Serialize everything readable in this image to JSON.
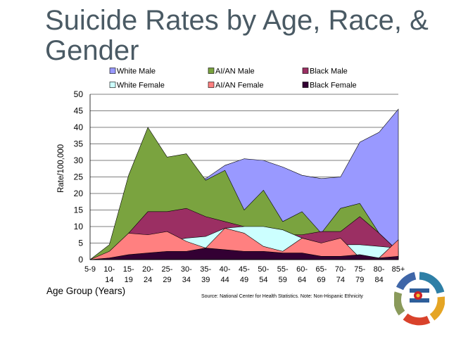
{
  "slide": {
    "title_line1": "Suicide Rates by Age, Race, &",
    "title_line2": "Gender",
    "source_note": "Source: National Center for Health Statistics. Note: Non-Hispanic Ethnicity"
  },
  "chart_data": {
    "type": "area",
    "title": "Suicide Rates by Age, Race, & Gender",
    "xlabel": "Age Group (Years)",
    "ylabel": "Rate/100,000",
    "ylim": [
      0,
      50
    ],
    "yticks": [
      0,
      5,
      10,
      15,
      20,
      25,
      30,
      35,
      40,
      45,
      50
    ],
    "gridlines": true,
    "legend_position": "top",
    "categories": [
      [
        "5-9"
      ],
      [
        "10-",
        "14"
      ],
      [
        "15-",
        "19"
      ],
      [
        "20-",
        "24"
      ],
      [
        "25-",
        "29"
      ],
      [
        "30-",
        "34"
      ],
      [
        "35-",
        "39"
      ],
      [
        "40-",
        "44"
      ],
      [
        "45-",
        "49"
      ],
      [
        "50-",
        "54"
      ],
      [
        "55-",
        "59"
      ],
      [
        "60-",
        "64"
      ],
      [
        "65-",
        "69"
      ],
      [
        "70-",
        "74"
      ],
      [
        "75-",
        "79"
      ],
      [
        "80-",
        "84"
      ],
      [
        "85+"
      ]
    ],
    "series": [
      {
        "name": "White Male",
        "color": "#9999ff",
        "values": [
          0,
          1.5,
          9.5,
          23,
          26.5,
          24.5,
          24.5,
          28.5,
          30.5,
          30,
          28,
          25.5,
          24.5,
          25,
          35.5,
          38.5,
          45.5
        ]
      },
      {
        "name": "AI/AN Male",
        "color": "#7aa33f",
        "values": [
          0,
          4.5,
          25.5,
          40,
          31,
          32,
          24,
          27,
          15,
          21,
          11.5,
          14.5,
          8,
          15.5,
          17,
          8,
          2.5
        ]
      },
      {
        "name": "Black Male",
        "color": "#9b2f63",
        "values": [
          0,
          1.5,
          8,
          14.5,
          14.5,
          15.5,
          13,
          11.5,
          10,
          8.5,
          7.5,
          7.5,
          8.5,
          8.5,
          13,
          8,
          2.5
        ]
      },
      {
        "name": "White Female",
        "color": "#ccffff",
        "values": [
          0,
          0.5,
          1.5,
          3.5,
          5.5,
          6.5,
          7,
          9.5,
          10,
          10,
          9,
          6.5,
          5,
          4.5,
          4.5,
          4,
          3.5
        ]
      },
      {
        "name": "AI/AN Female",
        "color": "#ff8080",
        "values": [
          0,
          2.5,
          8,
          7.5,
          8.5,
          5.5,
          3.5,
          9.5,
          8,
          4,
          2.5,
          6.5,
          5,
          6.5,
          0.5,
          0.5,
          6
        ]
      },
      {
        "name": "Black Female",
        "color": "#330033",
        "values": [
          0,
          0.5,
          1.5,
          2,
          2.5,
          2.5,
          3.5,
          3,
          2.5,
          2.5,
          2,
          2,
          1,
          1,
          1.5,
          0.5,
          1
        ]
      }
    ]
  }
}
